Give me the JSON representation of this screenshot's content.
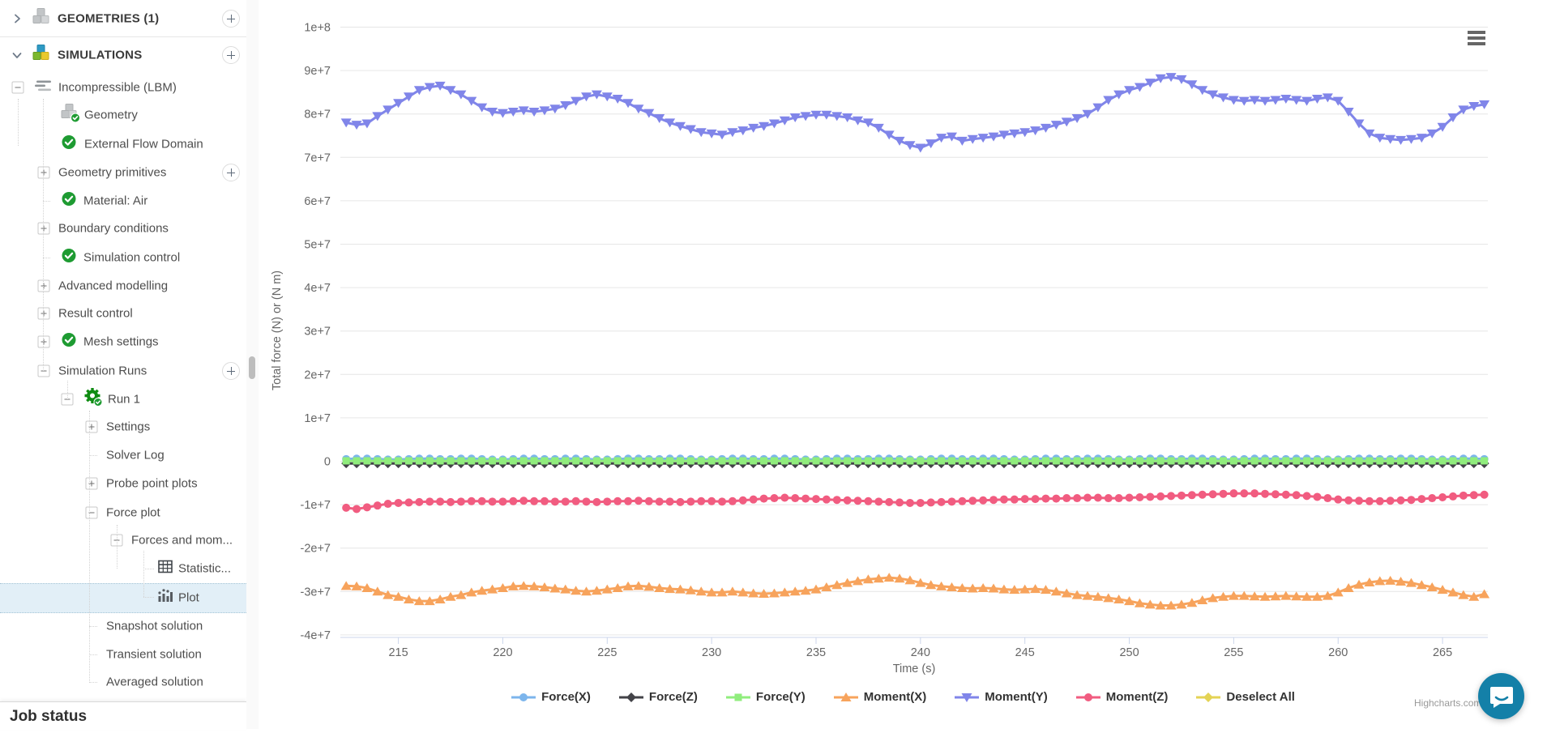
{
  "sidebar": {
    "items": [
      {
        "label": "GEOMETRIES (1)",
        "chevron": "right",
        "icon": "cubes-gray-icon",
        "bold": true,
        "add_button": true
      },
      {
        "label": "SIMULATIONS",
        "chevron": "down",
        "icon": "cubes-color-icon",
        "bold": true,
        "add_button": true
      },
      {
        "label": "Incompressible (LBM)",
        "expander": "minus",
        "icon": "mesh-lines-icon"
      },
      {
        "label": "Geometry",
        "icon": "geometry-cube-check-icon"
      },
      {
        "label": "External Flow Domain",
        "icon": "check-icon"
      },
      {
        "label": "Geometry primitives",
        "expander": "plus",
        "add_button": true
      },
      {
        "label": "Material: Air",
        "icon": "check-icon"
      },
      {
        "label": "Boundary conditions",
        "expander": "plus"
      },
      {
        "label": "Simulation control",
        "icon": "check-icon"
      },
      {
        "label": "Advanced modelling",
        "expander": "plus"
      },
      {
        "label": "Result control",
        "expander": "plus"
      },
      {
        "label": "Mesh settings",
        "expander": "plus",
        "icon": "check-icon"
      },
      {
        "label": "Simulation Runs",
        "expander": "minus",
        "add_button": true
      },
      {
        "label": "Run 1",
        "expander": "minus",
        "icon": "gear-check-icon"
      },
      {
        "label": "Settings",
        "expander": "plus"
      },
      {
        "label": "Solver Log"
      },
      {
        "label": "Probe point plots",
        "expander": "plus"
      },
      {
        "label": "Force plot",
        "expander": "minus"
      },
      {
        "label": "Forces and mom...",
        "expander": "minus"
      },
      {
        "label": "Statistic...",
        "icon": "table-icon"
      },
      {
        "label": "Plot",
        "icon": "bar-chart-icon",
        "selected": true
      },
      {
        "label": "Snapshot solution"
      },
      {
        "label": "Transient solution"
      },
      {
        "label": "Averaged solution"
      }
    ],
    "job_status_label": "Job status"
  },
  "chart": {
    "credit": "Highcharts.com"
  },
  "chart_data": {
    "type": "line",
    "title": "",
    "xlabel": "Time (s)",
    "ylabel": "Total force (N) or (N m)",
    "xlim": [
      212.2,
      267.6
    ],
    "ylim": [
      -45000000,
      105000000
    ],
    "grid": true,
    "legend_position": "bottom",
    "x_ticks": [
      215,
      220,
      225,
      230,
      235,
      240,
      245,
      250,
      255,
      260,
      265
    ],
    "y_ticks": [
      {
        "value": 10,
        "label": "1e+8"
      },
      {
        "value": 9,
        "label": "9e+7"
      },
      {
        "value": 8,
        "label": "8e+7"
      },
      {
        "value": 7,
        "label": "7e+7"
      },
      {
        "value": 6,
        "label": "6e+7"
      },
      {
        "value": 5,
        "label": "5e+7"
      },
      {
        "value": 4,
        "label": "4e+7"
      },
      {
        "value": 3,
        "label": "3e+7"
      },
      {
        "value": 2,
        "label": "2e+7"
      },
      {
        "value": 1,
        "label": "1e+7"
      },
      {
        "value": 0,
        "label": "0"
      },
      {
        "value": -1,
        "label": "-1e+7"
      },
      {
        "value": -2,
        "label": "-2e+7"
      },
      {
        "value": -3,
        "label": "-3e+7"
      },
      {
        "value": -4,
        "label": "-4e+7"
      }
    ],
    "value_unit": 10000000,
    "x_start": 212.5,
    "x_step": 0.5,
    "series": [
      {
        "name": "Force(X)",
        "color": "#7cb5ec",
        "marker": "circle",
        "values": [
          0.05,
          0.06,
          0.06,
          0.05,
          0.04,
          0.04,
          0.05,
          0.06,
          0.06,
          0.05,
          0.05,
          0.06,
          0.06,
          0.05,
          0.04,
          0.04,
          0.05,
          0.06,
          0.06,
          0.05,
          0.05,
          0.06,
          0.06,
          0.05,
          0.04,
          0.04,
          0.05,
          0.06,
          0.06,
          0.05,
          0.05,
          0.06,
          0.06,
          0.05,
          0.04,
          0.04,
          0.05,
          0.06,
          0.06,
          0.05,
          0.05,
          0.06,
          0.06,
          0.05,
          0.04,
          0.04,
          0.05,
          0.06,
          0.06,
          0.05,
          0.05,
          0.06,
          0.06,
          0.05,
          0.04,
          0.04,
          0.05,
          0.06,
          0.06,
          0.05,
          0.05,
          0.06,
          0.06,
          0.05,
          0.04,
          0.04,
          0.05,
          0.06,
          0.06,
          0.05,
          0.05,
          0.06,
          0.06,
          0.05,
          0.04,
          0.04,
          0.05,
          0.06,
          0.06,
          0.05,
          0.05,
          0.06,
          0.06,
          0.05,
          0.04,
          0.04,
          0.05,
          0.06,
          0.06,
          0.05,
          0.05,
          0.06,
          0.06,
          0.05,
          0.04,
          0.04,
          0.05,
          0.06,
          0.06,
          0.05,
          0.05,
          0.06,
          0.06,
          0.05,
          0.04,
          0.04,
          0.05,
          0.06,
          0.06,
          0.05
        ]
      },
      {
        "name": "Force(Z)",
        "color": "#434348",
        "marker": "diamond",
        "values": [
          -0.05,
          -0.05,
          -0.05,
          -0.05,
          -0.05,
          -0.05,
          -0.05,
          -0.05,
          -0.05,
          -0.05,
          -0.05,
          -0.05,
          -0.05,
          -0.05,
          -0.05,
          -0.05,
          -0.05,
          -0.05,
          -0.05,
          -0.05,
          -0.05,
          -0.05,
          -0.05,
          -0.05,
          -0.05,
          -0.05,
          -0.05,
          -0.05,
          -0.05,
          -0.05,
          -0.05,
          -0.05,
          -0.05,
          -0.05,
          -0.05,
          -0.05,
          -0.05,
          -0.05,
          -0.05,
          -0.05,
          -0.05,
          -0.05,
          -0.05,
          -0.05,
          -0.05,
          -0.05,
          -0.05,
          -0.05,
          -0.05,
          -0.05,
          -0.05,
          -0.05,
          -0.05,
          -0.05,
          -0.05,
          -0.05,
          -0.05,
          -0.05,
          -0.05,
          -0.05,
          -0.05,
          -0.05,
          -0.05,
          -0.05,
          -0.05,
          -0.05,
          -0.05,
          -0.05,
          -0.05,
          -0.05,
          -0.05,
          -0.05,
          -0.05,
          -0.05,
          -0.05,
          -0.05,
          -0.05,
          -0.05,
          -0.05,
          -0.05,
          -0.05,
          -0.05,
          -0.05,
          -0.05,
          -0.05,
          -0.05,
          -0.05,
          -0.05,
          -0.05,
          -0.05,
          -0.05,
          -0.05,
          -0.05,
          -0.05,
          -0.05,
          -0.05,
          -0.05,
          -0.05,
          -0.05,
          -0.05,
          -0.05,
          -0.05,
          -0.05,
          -0.05,
          -0.05,
          -0.05,
          -0.05,
          -0.05,
          -0.05,
          -0.05
        ]
      },
      {
        "name": "Force(Y)",
        "color": "#90ed7d",
        "marker": "square",
        "values": [
          0.01,
          0.01,
          0.01,
          0.01,
          0.01,
          0.01,
          0.01,
          0.01,
          0.01,
          0.01,
          0.01,
          0.01,
          0.01,
          0.01,
          0.01,
          0.01,
          0.01,
          0.01,
          0.01,
          0.01,
          0.01,
          0.01,
          0.01,
          0.01,
          0.01,
          0.01,
          0.01,
          0.01,
          0.01,
          0.01,
          0.01,
          0.01,
          0.01,
          0.01,
          0.01,
          0.01,
          0.01,
          0.01,
          0.01,
          0.01,
          0.01,
          0.01,
          0.01,
          0.01,
          0.01,
          0.01,
          0.01,
          0.01,
          0.01,
          0.01,
          0.01,
          0.01,
          0.01,
          0.01,
          0.01,
          0.01,
          0.01,
          0.01,
          0.01,
          0.01,
          0.01,
          0.01,
          0.01,
          0.01,
          0.01,
          0.01,
          0.01,
          0.01,
          0.01,
          0.01,
          0.01,
          0.01,
          0.01,
          0.01,
          0.01,
          0.01,
          0.01,
          0.01,
          0.01,
          0.01,
          0.01,
          0.01,
          0.01,
          0.01,
          0.01,
          0.01,
          0.01,
          0.01,
          0.01,
          0.01,
          0.01,
          0.01,
          0.01,
          0.01,
          0.01,
          0.01,
          0.01,
          0.01,
          0.01,
          0.01,
          0.01,
          0.01,
          0.01,
          0.01,
          0.01,
          0.01,
          0.01,
          0.01,
          0.01,
          0.01
        ]
      },
      {
        "name": "Moment(X)",
        "color": "#f7a35c",
        "marker": "triangle",
        "values": [
          -2.87,
          -2.88,
          -2.92,
          -3.0,
          -3.08,
          -3.12,
          -3.18,
          -3.22,
          -3.22,
          -3.18,
          -3.12,
          -3.08,
          -3.02,
          -2.98,
          -2.95,
          -2.92,
          -2.88,
          -2.87,
          -2.88,
          -2.9,
          -2.93,
          -2.95,
          -2.98,
          -3.0,
          -2.98,
          -2.95,
          -2.92,
          -2.88,
          -2.87,
          -2.89,
          -2.92,
          -2.94,
          -2.95,
          -2.97,
          -3.0,
          -3.02,
          -3.02,
          -3.0,
          -3.02,
          -3.04,
          -3.05,
          -3.04,
          -3.02,
          -3.0,
          -2.98,
          -2.95,
          -2.9,
          -2.85,
          -2.8,
          -2.76,
          -2.72,
          -2.7,
          -2.68,
          -2.7,
          -2.74,
          -2.8,
          -2.85,
          -2.88,
          -2.9,
          -2.92,
          -2.93,
          -2.92,
          -2.93,
          -2.95,
          -2.96,
          -2.95,
          -2.94,
          -2.96,
          -3.0,
          -3.04,
          -3.08,
          -3.1,
          -3.12,
          -3.15,
          -3.18,
          -3.22,
          -3.27,
          -3.3,
          -3.32,
          -3.32,
          -3.3,
          -3.26,
          -3.2,
          -3.15,
          -3.12,
          -3.1,
          -3.1,
          -3.11,
          -3.12,
          -3.11,
          -3.1,
          -3.11,
          -3.12,
          -3.12,
          -3.1,
          -3.02,
          -2.92,
          -2.84,
          -2.79,
          -2.76,
          -2.75,
          -2.77,
          -2.8,
          -2.85,
          -2.9,
          -2.96,
          -3.02,
          -3.08,
          -3.12,
          -3.06
        ]
      },
      {
        "name": "Moment(Y)",
        "color": "#8085e9",
        "marker": "triangle-down",
        "values": [
          7.8,
          7.75,
          7.78,
          7.95,
          8.1,
          8.25,
          8.4,
          8.55,
          8.62,
          8.65,
          8.55,
          8.45,
          8.3,
          8.15,
          8.05,
          8.02,
          8.05,
          8.08,
          8.05,
          8.08,
          8.12,
          8.2,
          8.3,
          8.4,
          8.45,
          8.4,
          8.35,
          8.25,
          8.12,
          8.02,
          7.9,
          7.8,
          7.72,
          7.65,
          7.58,
          7.55,
          7.52,
          7.58,
          7.62,
          7.68,
          7.72,
          7.78,
          7.85,
          7.92,
          7.95,
          7.98,
          7.98,
          7.95,
          7.92,
          7.85,
          7.8,
          7.68,
          7.52,
          7.38,
          7.28,
          7.22,
          7.32,
          7.45,
          7.48,
          7.38,
          7.42,
          7.45,
          7.48,
          7.52,
          7.55,
          7.58,
          7.62,
          7.68,
          7.75,
          7.82,
          7.9,
          8.0,
          8.15,
          8.32,
          8.45,
          8.55,
          8.62,
          8.72,
          8.82,
          8.85,
          8.8,
          8.68,
          8.55,
          8.45,
          8.38,
          8.32,
          8.3,
          8.32,
          8.3,
          8.32,
          8.35,
          8.32,
          8.3,
          8.35,
          8.38,
          8.3,
          8.05,
          7.78,
          7.55,
          7.45,
          7.42,
          7.4,
          7.42,
          7.45,
          7.55,
          7.7,
          7.92,
          8.1,
          8.18,
          8.22
        ]
      },
      {
        "name": "Moment(Z)",
        "color": "#f15c80",
        "marker": "circle",
        "values": [
          -1.07,
          -1.1,
          -1.06,
          -1.02,
          -0.98,
          -0.96,
          -0.95,
          -0.94,
          -0.93,
          -0.93,
          -0.94,
          -0.93,
          -0.92,
          -0.92,
          -0.93,
          -0.93,
          -0.92,
          -0.91,
          -0.92,
          -0.92,
          -0.93,
          -0.93,
          -0.92,
          -0.93,
          -0.94,
          -0.93,
          -0.92,
          -0.92,
          -0.91,
          -0.92,
          -0.93,
          -0.93,
          -0.94,
          -0.93,
          -0.92,
          -0.92,
          -0.93,
          -0.92,
          -0.9,
          -0.88,
          -0.86,
          -0.85,
          -0.84,
          -0.85,
          -0.86,
          -0.87,
          -0.88,
          -0.89,
          -0.9,
          -0.91,
          -0.92,
          -0.93,
          -0.94,
          -0.95,
          -0.96,
          -0.96,
          -0.95,
          -0.94,
          -0.93,
          -0.92,
          -0.91,
          -0.9,
          -0.89,
          -0.88,
          -0.88,
          -0.87,
          -0.87,
          -0.86,
          -0.86,
          -0.85,
          -0.85,
          -0.84,
          -0.84,
          -0.85,
          -0.85,
          -0.84,
          -0.83,
          -0.82,
          -0.81,
          -0.8,
          -0.79,
          -0.78,
          -0.77,
          -0.76,
          -0.75,
          -0.74,
          -0.74,
          -0.74,
          -0.75,
          -0.76,
          -0.77,
          -0.78,
          -0.8,
          -0.82,
          -0.85,
          -0.88,
          -0.9,
          -0.91,
          -0.92,
          -0.92,
          -0.91,
          -0.9,
          -0.89,
          -0.87,
          -0.85,
          -0.83,
          -0.81,
          -0.79,
          -0.78,
          -0.77
        ]
      }
    ],
    "legend_extra": {
      "name": "Deselect All",
      "color": "#e4d354",
      "marker": "diamond"
    }
  }
}
